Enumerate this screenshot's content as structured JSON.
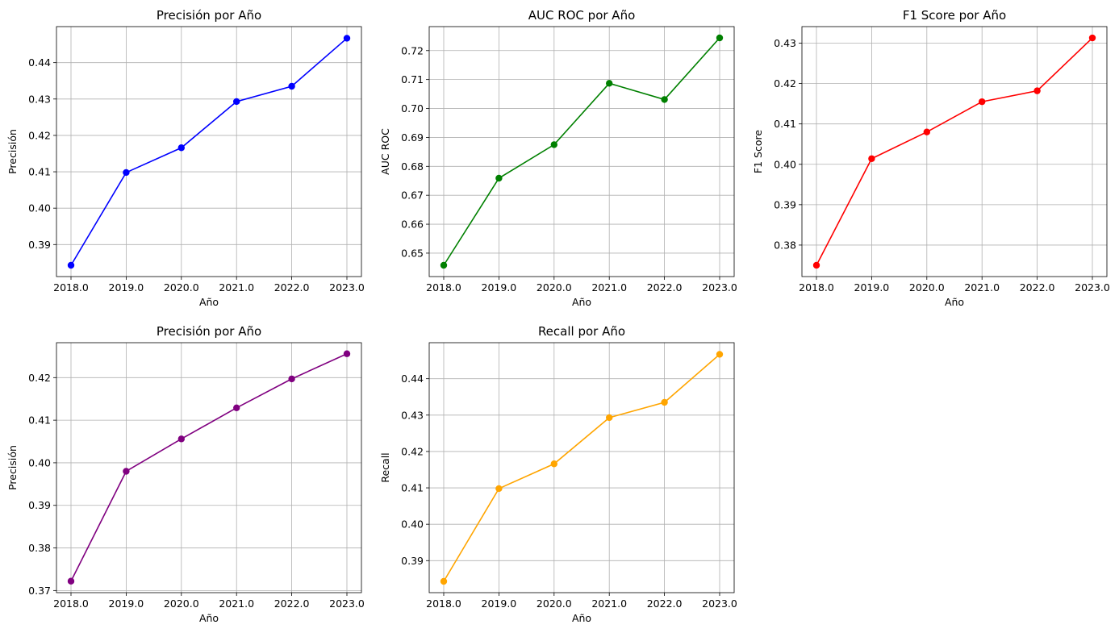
{
  "chart_data": [
    {
      "type": "line",
      "title": "Precisión por Año",
      "xlabel": "Año",
      "ylabel": "Precisión",
      "color": "#0000ff",
      "grid": true,
      "x": [
        2018.0,
        2019.0,
        2020.0,
        2021.0,
        2022.0,
        2023.0
      ],
      "x_tick_labels": [
        "2018.0",
        "2019.0",
        "2020.0",
        "2021.0",
        "2022.0",
        "2023.0"
      ],
      "y": [
        0.3843,
        0.4098,
        0.4166,
        0.4293,
        0.4335,
        0.4467
      ],
      "ylim": [
        0.3812,
        0.4499
      ],
      "y_ticks": [
        0.39,
        0.4,
        0.41,
        0.42,
        0.43,
        0.44
      ],
      "y_tick_labels": [
        "0.39",
        "0.40",
        "0.41",
        "0.42",
        "0.43",
        "0.44"
      ]
    },
    {
      "type": "line",
      "title": "AUC ROC por Año",
      "xlabel": "Año",
      "ylabel": "AUC ROC",
      "color": "#008000",
      "grid": true,
      "x": [
        2018.0,
        2019.0,
        2020.0,
        2021.0,
        2022.0,
        2023.0
      ],
      "x_tick_labels": [
        "2018.0",
        "2019.0",
        "2020.0",
        "2021.0",
        "2022.0",
        "2023.0"
      ],
      "y": [
        0.6458,
        0.6759,
        0.6875,
        0.7087,
        0.7031,
        0.7244
      ],
      "ylim": [
        0.6419,
        0.7283
      ],
      "y_ticks": [
        0.65,
        0.66,
        0.67,
        0.68,
        0.69,
        0.7,
        0.71,
        0.72
      ],
      "y_tick_labels": [
        "0.65",
        "0.66",
        "0.67",
        "0.68",
        "0.69",
        "0.70",
        "0.71",
        "0.72"
      ]
    },
    {
      "type": "line",
      "title": "F1 Score por Año",
      "xlabel": "Año",
      "ylabel": "F1 Score",
      "color": "#ff0000",
      "grid": true,
      "x": [
        2018.0,
        2019.0,
        2020.0,
        2021.0,
        2022.0,
        2023.0
      ],
      "x_tick_labels": [
        "2018.0",
        "2019.0",
        "2020.0",
        "2021.0",
        "2022.0",
        "2023.0"
      ],
      "y": [
        0.375,
        0.4014,
        0.408,
        0.4155,
        0.4182,
        0.4313
      ],
      "ylim": [
        0.3722,
        0.4341
      ],
      "y_ticks": [
        0.38,
        0.39,
        0.4,
        0.41,
        0.42,
        0.43
      ],
      "y_tick_labels": [
        "0.38",
        "0.39",
        "0.40",
        "0.41",
        "0.42",
        "0.43"
      ]
    },
    {
      "type": "line",
      "title": "Precisión por Año",
      "xlabel": "Año",
      "ylabel": "Precisión",
      "color": "#800080",
      "grid": true,
      "x": [
        2018.0,
        2019.0,
        2020.0,
        2021.0,
        2022.0,
        2023.0
      ],
      "x_tick_labels": [
        "2018.0",
        "2019.0",
        "2020.0",
        "2021.0",
        "2022.0",
        "2023.0"
      ],
      "y": [
        0.3722,
        0.398,
        0.4056,
        0.4129,
        0.4197,
        0.4256
      ],
      "ylim": [
        0.3695,
        0.4282
      ],
      "y_ticks": [
        0.37,
        0.38,
        0.39,
        0.4,
        0.41,
        0.42
      ],
      "y_tick_labels": [
        "0.37",
        "0.38",
        "0.39",
        "0.40",
        "0.41",
        "0.42"
      ]
    },
    {
      "type": "line",
      "title": "Recall por Año",
      "xlabel": "Año",
      "ylabel": "Recall",
      "color": "#ffa500",
      "grid": true,
      "x": [
        2018.0,
        2019.0,
        2020.0,
        2021.0,
        2022.0,
        2023.0
      ],
      "x_tick_labels": [
        "2018.0",
        "2019.0",
        "2020.0",
        "2021.0",
        "2022.0",
        "2023.0"
      ],
      "y": [
        0.3843,
        0.4098,
        0.4166,
        0.4293,
        0.4335,
        0.4467
      ],
      "ylim": [
        0.3812,
        0.4499
      ],
      "y_ticks": [
        0.39,
        0.4,
        0.41,
        0.42,
        0.43,
        0.44
      ],
      "y_tick_labels": [
        "0.39",
        "0.40",
        "0.41",
        "0.42",
        "0.43",
        "0.44"
      ]
    }
  ]
}
